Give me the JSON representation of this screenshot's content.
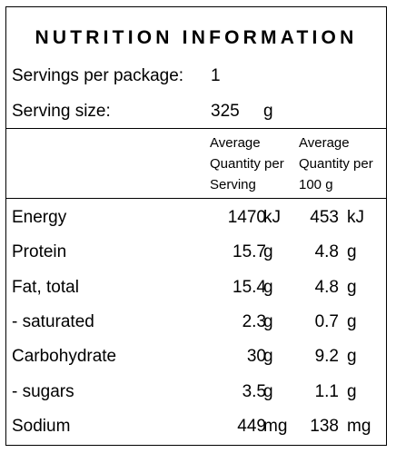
{
  "panel": {
    "title": "NUTRITION INFORMATION",
    "servings": {
      "label": "Servings per package:",
      "value": "1"
    },
    "serving_size": {
      "label": "Serving size:",
      "value": "325",
      "unit": "g"
    },
    "columns": {
      "per_serving": "Average\nQuantity per\nServing",
      "per_100g": "Average\nQuantity per\n100 g"
    },
    "rows": [
      {
        "name": "Energy",
        "serving": "1470",
        "serving_unit": "kJ",
        "per100": "453",
        "per100_unit": "kJ"
      },
      {
        "name": "Protein",
        "serving": "15.7",
        "serving_unit": "g",
        "per100": "4.8",
        "per100_unit": "g"
      },
      {
        "name": "Fat, total",
        "serving": "15.4",
        "serving_unit": "g",
        "per100": "4.8",
        "per100_unit": "g"
      },
      {
        "name": "- saturated",
        "serving": "2.3",
        "serving_unit": "g",
        "per100": "0.7",
        "per100_unit": "g"
      },
      {
        "name": "Carbohydrate",
        "serving": "30",
        "serving_unit": "g",
        "per100": "9.2",
        "per100_unit": "g"
      },
      {
        "name": "- sugars",
        "serving": "3.5",
        "serving_unit": "g",
        "per100": "1.1",
        "per100_unit": "g"
      },
      {
        "name": "Sodium",
        "serving": "449",
        "serving_unit": "mg",
        "per100": "138",
        "per100_unit": "mg"
      }
    ]
  }
}
